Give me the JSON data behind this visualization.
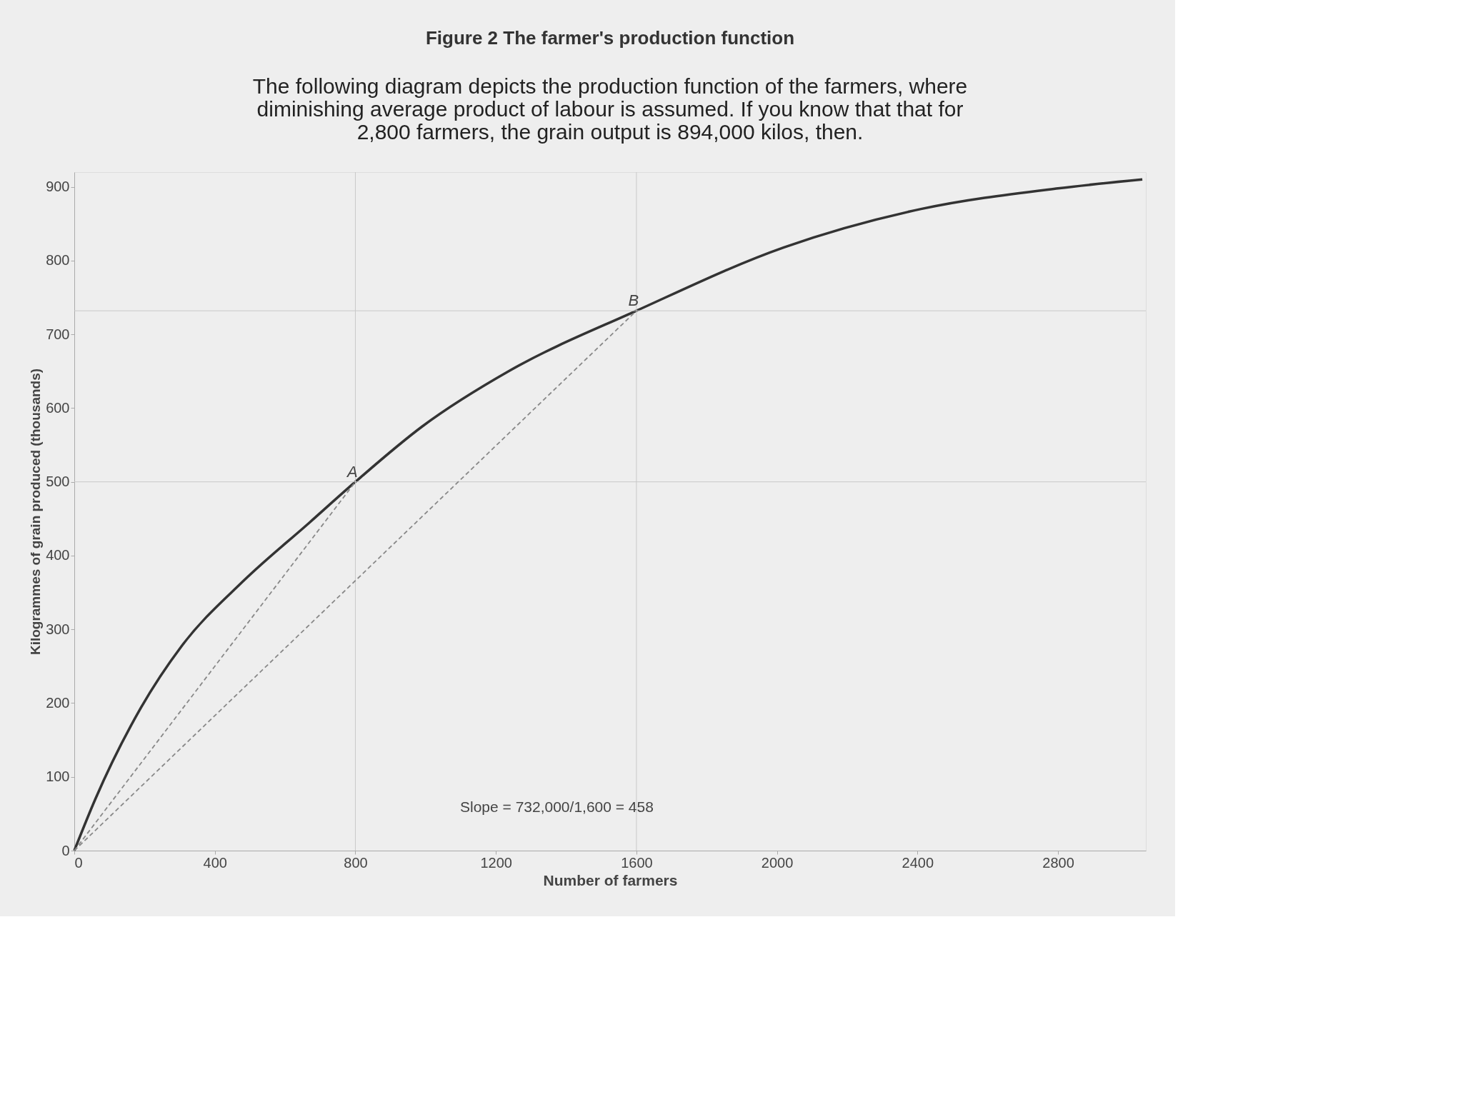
{
  "chart_data": {
    "type": "line",
    "title": "Figure 2  The farmer's production function",
    "subtitle": "The following diagram depicts the production function of the farmers, where diminishing average product of labour is assumed. If you know that that for 2,800 farmers, the grain output is 894,000 kilos, then.",
    "xlabel": "Number of farmers",
    "ylabel": "Kilogrammes of grain produced (thousands)",
    "xlim": [
      0,
      3050
    ],
    "ylim": [
      0,
      920
    ],
    "xticks": [
      0,
      400,
      800,
      1200,
      1600,
      2000,
      2400,
      2800
    ],
    "yticks": [
      0,
      100,
      200,
      300,
      400,
      500,
      600,
      700,
      800,
      900
    ],
    "grid": false,
    "marker": "none",
    "series": [
      {
        "color": "#333333",
        "line_style": "solid",
        "x": [
          0,
          60,
          190,
          305,
          480,
          670,
          800,
          990,
          1240,
          1600,
          2020,
          2410,
          2800,
          3040
        ],
        "values": [
          0,
          70,
          194,
          277,
          365,
          445,
          500,
          575,
          651,
          732,
          818,
          870,
          898,
          910
        ]
      },
      {
        "color": "#888888",
        "line_style": "dashed",
        "x": [
          0,
          800
        ],
        "values": [
          0,
          500
        ]
      },
      {
        "color": "#888888",
        "line_style": "dashed",
        "x": [
          0,
          1600
        ],
        "values": [
          0,
          732
        ]
      }
    ],
    "ref_lines": [
      {
        "axis": "y",
        "value": 500,
        "color": "#c8c8c8"
      },
      {
        "axis": "y",
        "value": 732,
        "color": "#c8c8c8"
      },
      {
        "axis": "x",
        "value": 800,
        "color": "#c8c8c8"
      },
      {
        "axis": "x",
        "value": 1600,
        "color": "#c8c8c8"
      }
    ],
    "annotations": [
      {
        "text": "A",
        "x": 800,
        "y": 500
      },
      {
        "text": "B",
        "x": 1600,
        "y": 732
      },
      "Slope = 732,000/1,600 = 458"
    ]
  }
}
